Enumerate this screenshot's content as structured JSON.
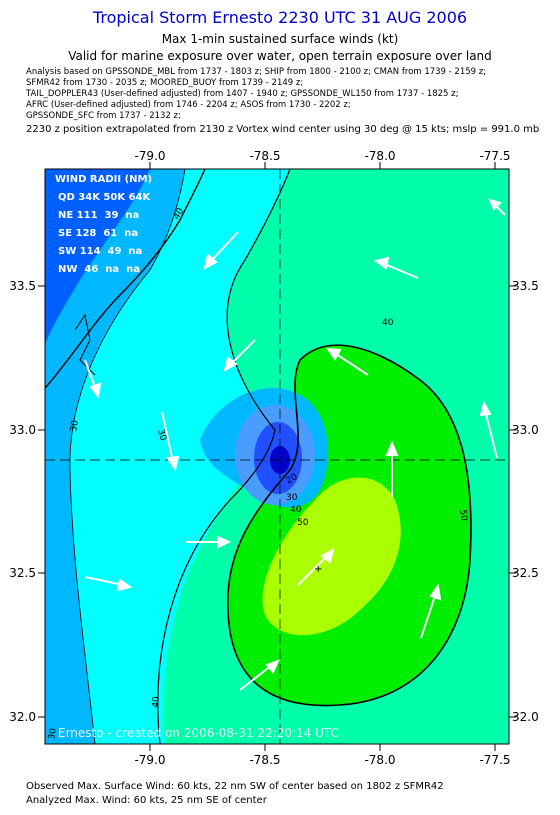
{
  "header": {
    "title": "Tropical Storm Ernesto 2230 UTC 31 AUG 2006",
    "subtitle1": "Max 1-min sustained surface winds (kt)",
    "subtitle2": "Valid for marine exposure over water, open terrain exposure over land",
    "analysis_lines": [
      "Analysis based on  GPSSONDE_MBL from 1737 - 1803 z;  SHIP from 1800 - 2100 z;  CMAN from 1739 - 2159 z;",
      "SFMR42 from 1730 - 2035 z;  MOORED_BUOY from 1739 - 2149 z;",
      "TAIL_DOPPLER43 (User-defined adjusted) from 1407 - 1940 z;  GPSSONDE_WL150 from 1737 - 1825 z;",
      "AFRC (User-defined adjusted) from 1746 - 2204 z;  ASOS from 1730 - 2202 z;",
      "GPSSONDE_SFC from 1737 - 2132 z;"
    ],
    "extrapolation": "2230 z position extrapolated from 2130 z Vortex wind center using 30 deg @ 15 kts; mslp = 991.0 mb"
  },
  "map": {
    "lon_ticks": [
      "-79.0",
      "-78.5",
      "-78.0",
      "-77.5"
    ],
    "lat_ticks": [
      "33.5",
      "33.0",
      "32.5",
      "32.0"
    ],
    "contour_labels": [
      "40",
      "40",
      "30",
      "30",
      "40",
      "50",
      "50",
      "20",
      "30",
      "40",
      "30"
    ],
    "credit": "Ernesto - created on 2006-08-31 22:20:14 UTC",
    "wind_radii": {
      "title": "WIND RADII (NM)",
      "header": "QD 34K 50K 64K",
      "rows": [
        "NE 111  39  na",
        "SE 128  61  na",
        "SW 114  49  na",
        "NW  46  na  na"
      ]
    },
    "colors": {
      "lt20": "#0060ff",
      "b20_30": "#00b8ff",
      "b30_40": "#00ffff",
      "b40_50": "#00ffaa",
      "b50_64": "#00ee00",
      "ge64": "#aaff00",
      "core_dark": "#0000cc"
    }
  },
  "footer": {
    "line1": "Observed Max. Surface Wind: 60 kts, 22 nm SW of center based on 1802 z SFMR42",
    "line2": "Analyzed Max. Wind: 60 kts, 25 nm SE of center"
  }
}
